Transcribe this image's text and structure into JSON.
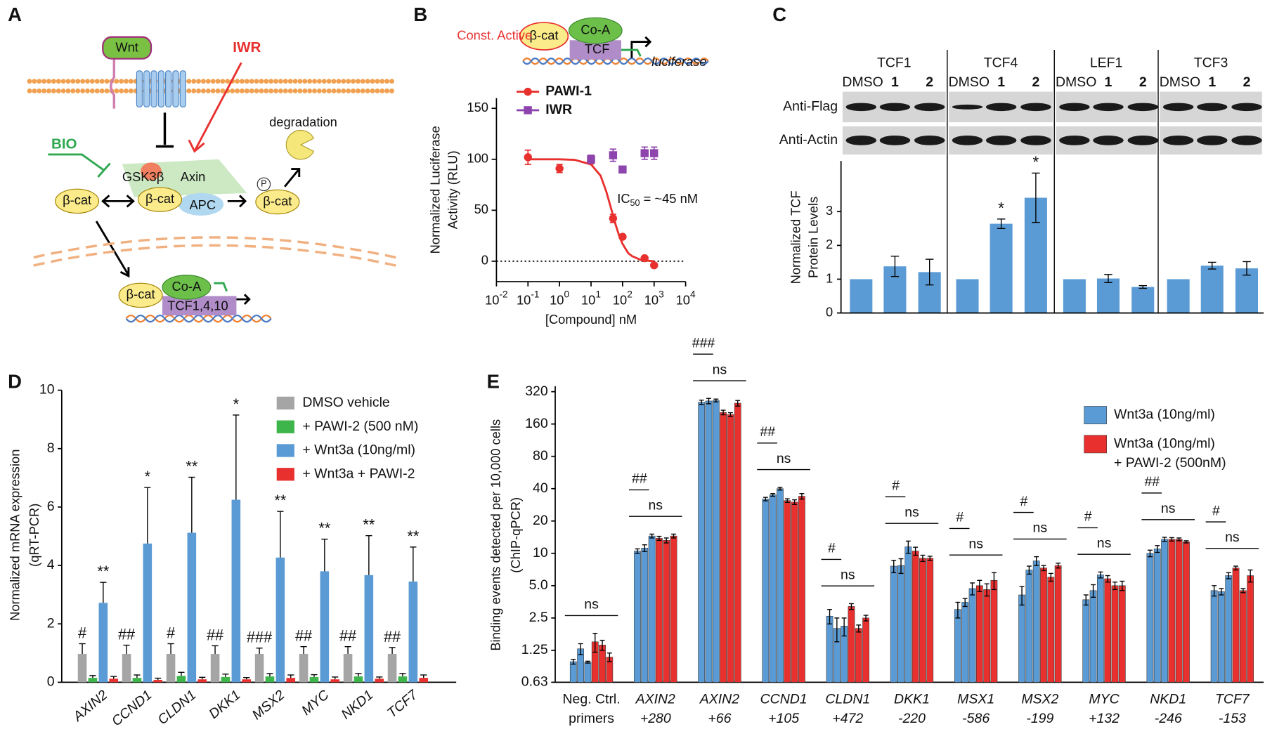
{
  "diagram": {
    "panel_label": "A",
    "wnt": "Wnt",
    "iwr": "IWR",
    "bio": "BIO",
    "degradation": "degradation",
    "gsk3b": "GSK3β",
    "axin": "Axin",
    "beta_cat": "β-cat",
    "apc": "APC",
    "phospho": "P",
    "co_a": "Co-A",
    "tcf": "TCF1,4,10"
  },
  "chart_data": [
    {
      "type": "line",
      "panel_label": "B",
      "schematic": {
        "const_active": "Const. Active",
        "beta_cat": "β-cat",
        "co_a": "Co-A",
        "tcf": "TCF",
        "reporter": "luciferase"
      },
      "xscale": "log",
      "xlim": [
        0.01,
        10000
      ],
      "xticks": [
        {
          "value": 0.01,
          "label": "10",
          "exp": "-2"
        },
        {
          "value": 0.1,
          "label": "10",
          "exp": "-1"
        },
        {
          "value": 1,
          "label": "10",
          "exp": "0"
        },
        {
          "value": 10,
          "label": "10",
          "exp": "1"
        },
        {
          "value": 100,
          "label": "10",
          "exp": "2"
        },
        {
          "value": 1000,
          "label": "10",
          "exp": "3"
        },
        {
          "value": 10000,
          "label": "10",
          "exp": "4"
        }
      ],
      "ylim": [
        -20,
        160
      ],
      "yticks": [
        0,
        50,
        100,
        150
      ],
      "reference_line": 0,
      "xlabel": "[Compound] nM",
      "ylabel": [
        "Normalized Luciferase",
        "Activity (RLU)"
      ],
      "annotation": {
        "text": "IC",
        "sub": "50",
        "rest": " = ~45 nM"
      },
      "series": [
        {
          "name": "PAWI-1",
          "color": "#e8312f",
          "marker": "circle",
          "x": [
            0.1,
            1,
            10,
            50,
            100,
            500,
            1000
          ],
          "values": [
            102,
            91,
            98,
            42,
            24,
            3,
            -4
          ],
          "errors": [
            7,
            4,
            2,
            4,
            2,
            1,
            1
          ]
        },
        {
          "name": "IWR",
          "color": "#8e44ad",
          "marker": "square",
          "x": [
            10,
            50,
            100,
            500,
            1000
          ],
          "values": [
            100,
            104,
            90,
            106,
            106
          ],
          "errors": [
            4,
            6,
            3,
            6,
            6
          ]
        }
      ],
      "fit": {
        "color": "#e8312f",
        "x": [
          0.1,
          1,
          3,
          10,
          20,
          30,
          45,
          60,
          80,
          100,
          150,
          200,
          400,
          1000
        ],
        "values": [
          100,
          100,
          99.5,
          95,
          84,
          69,
          50,
          36,
          24,
          17,
          8,
          5,
          1,
          0
        ]
      }
    },
    {
      "type": "bar",
      "panel_label": "C",
      "color": "#5b9bd5",
      "groups": [
        "TCF1",
        "TCF4",
        "LEF1",
        "TCF3"
      ],
      "lanes": [
        "DMSO",
        "1",
        "2"
      ],
      "rows": [
        "Anti-Flag",
        "Anti-Actin"
      ],
      "values": [
        [
          1,
          1.38,
          1.21
        ],
        [
          1,
          2.64,
          3.41
        ],
        [
          1,
          1.02,
          0.77
        ],
        [
          1,
          1.4,
          1.32
        ]
      ],
      "errors": [
        [
          null,
          0.3,
          0.38
        ],
        [
          null,
          0.14,
          0.73
        ],
        [
          null,
          0.12,
          0.04
        ],
        [
          null,
          0.1,
          0.2
        ]
      ],
      "stars": [
        [
          null,
          null,
          null
        ],
        [
          null,
          "*",
          "*"
        ],
        [
          null,
          null,
          null
        ],
        [
          null,
          null,
          null
        ]
      ],
      "ylim": [
        0,
        4.5
      ],
      "yticks": [
        0,
        1,
        2,
        3
      ],
      "ylabel": [
        "Normalized TCF",
        "Protein Levels"
      ]
    },
    {
      "type": "bar",
      "panel_label": "D",
      "categories": [
        "AXIN2",
        "CCND1",
        "CLDN1",
        "DKK1",
        "MSX2",
        "MYC",
        "NKD1",
        "TCF7"
      ],
      "ylim": [
        0,
        10
      ],
      "yticks": [
        0,
        2,
        4,
        6,
        8,
        10
      ],
      "ylabel": [
        "Normalized mRNA expression",
        "(qRT-PCR)"
      ],
      "series": [
        {
          "name": "DMSO vehicle",
          "color": "#a5a5a5",
          "values": [
            0.97,
            0.97,
            0.97,
            0.97,
            0.97,
            0.97,
            0.97,
            0.97
          ],
          "errors": [
            0.35,
            0.3,
            0.35,
            0.28,
            0.2,
            0.25,
            0.25,
            0.22
          ],
          "annotations": [
            "#",
            "##",
            "#",
            "##",
            "###",
            "##",
            "##",
            "##"
          ]
        },
        {
          "name": "+ PAWI-2 (500 nM)",
          "color": "#3db54a",
          "values": [
            0.15,
            0.15,
            0.22,
            0.18,
            0.2,
            0.18,
            0.2,
            0.2
          ],
          "errors": [
            0.08,
            0.1,
            0.12,
            0.1,
            0.1,
            0.08,
            0.1,
            0.1
          ]
        },
        {
          "name": "+ Wnt3a (10ng/ml)",
          "color": "#5b9bd5",
          "values": [
            2.72,
            4.75,
            5.12,
            6.25,
            4.27,
            3.8,
            3.67,
            3.45
          ],
          "errors": [
            0.7,
            1.92,
            1.9,
            2.9,
            1.58,
            1.1,
            1.35,
            1.18
          ],
          "annotations": [
            "**",
            "*",
            "**",
            "*",
            "**",
            "**",
            "**",
            "**"
          ]
        },
        {
          "name": "+ Wnt3a + PAWI-2",
          "color": "#e8312f",
          "values": [
            0.12,
            0.08,
            0.1,
            0.1,
            0.15,
            0.1,
            0.12,
            0.15
          ],
          "errors": [
            0.08,
            0.06,
            0.07,
            0.06,
            0.1,
            0.08,
            0.06,
            0.1
          ]
        }
      ]
    },
    {
      "type": "bar",
      "panel_label": "E",
      "yscale": "log",
      "categories": [
        [
          "Neg. Ctrl.",
          "primers"
        ],
        [
          "AXIN2",
          "+280"
        ],
        [
          "AXIN2",
          "+66"
        ],
        [
          "CCND1",
          "+105"
        ],
        [
          "CLDN1",
          "+472"
        ],
        [
          "DKK1",
          "-220"
        ],
        [
          "MSX1",
          "-586"
        ],
        [
          "MSX2",
          "-199"
        ],
        [
          "MYC",
          "+132"
        ],
        [
          "NKD1",
          "-246"
        ],
        [
          "TCF7",
          "-153"
        ]
      ],
      "ylim": [
        0.63,
        360
      ],
      "yticks": [
        0.63,
        1.25,
        2.5,
        {
          "value": 5,
          "label": "5.0"
        },
        10,
        20,
        40,
        80,
        160,
        320
      ],
      "ylabel": [
        "Binding events detected per 10,000 cells",
        "(ChIP-qPCR)"
      ],
      "hash_labels": [
        null,
        "##",
        "###",
        "##",
        "#",
        "#",
        "#",
        "#",
        "#",
        "##",
        "#"
      ],
      "ns_labels": [
        "ns",
        "ns",
        "ns",
        "ns",
        "ns",
        "ns",
        "ns",
        "ns",
        "ns",
        "ns",
        "ns"
      ],
      "series": [
        {
          "name": "Wnt3a (10ng/ml)",
          "color": "#5b9bd5",
          "replicates": [
            {
              "values": [
                0.98,
                10.5,
                255,
                32,
                2.6,
                7.6,
                3.0,
                4.1,
                3.7,
                10,
                4.5
              ],
              "errors": [
                0.05,
                0.5,
                12,
                1.2,
                0.4,
                1.0,
                0.5,
                0.8,
                0.4,
                0.7,
                0.5
              ]
            },
            {
              "values": [
                1.29,
                11.2,
                262,
                35,
                2.0,
                7.7,
                3.5,
                7.0,
                4.5,
                11,
                4.4
              ],
              "errors": [
                0.15,
                0.8,
                15,
                1.0,
                0.5,
                1.2,
                0.3,
                0.6,
                0.6,
                0.8,
                0.3
              ]
            },
            {
              "values": [
                0.97,
                14.5,
                265,
                40,
                2.1,
                11.5,
                4.7,
                8.5,
                6.3,
                13.5,
                6.2
              ],
              "errors": [
                0.02,
                0.6,
                8,
                1.2,
                0.4,
                1.5,
                0.6,
                0.8,
                0.4,
                0.6,
                0.4
              ]
            }
          ]
        },
        {
          "name": "Wnt3a (10ng/ml)",
          "name_line2": "+ PAWI-2 (500nM)",
          "color": "#e8312f",
          "replicates": [
            {
              "values": [
                1.5,
                13.8,
                205,
                31,
                3.2,
                10.5,
                5.0,
                7.3,
                5.8,
                13.5,
                7.3
              ],
              "errors": [
                0.3,
                0.6,
                10,
                1.2,
                0.2,
                0.9,
                0.6,
                0.4,
                0.4,
                0.5,
                0.3
              ]
            },
            {
              "values": [
                1.4,
                13.2,
                196,
                30,
                2.0,
                9.0,
                4.6,
                6.0,
                5.0,
                13.5,
                4.5
              ],
              "errors": [
                0.15,
                0.7,
                8,
                1.5,
                0.15,
                0.6,
                0.6,
                0.5,
                0.4,
                0.4,
                0.2
              ]
            },
            {
              "values": [
                1.08,
                14.5,
                250,
                34,
                2.5,
                9.0,
                5.6,
                7.7,
                5.0,
                12.8,
                6.2
              ],
              "errors": [
                0.1,
                0.6,
                15,
                2,
                0.15,
                0.4,
                1.0,
                0.4,
                0.5,
                0.3,
                0.8
              ]
            }
          ]
        }
      ]
    }
  ]
}
